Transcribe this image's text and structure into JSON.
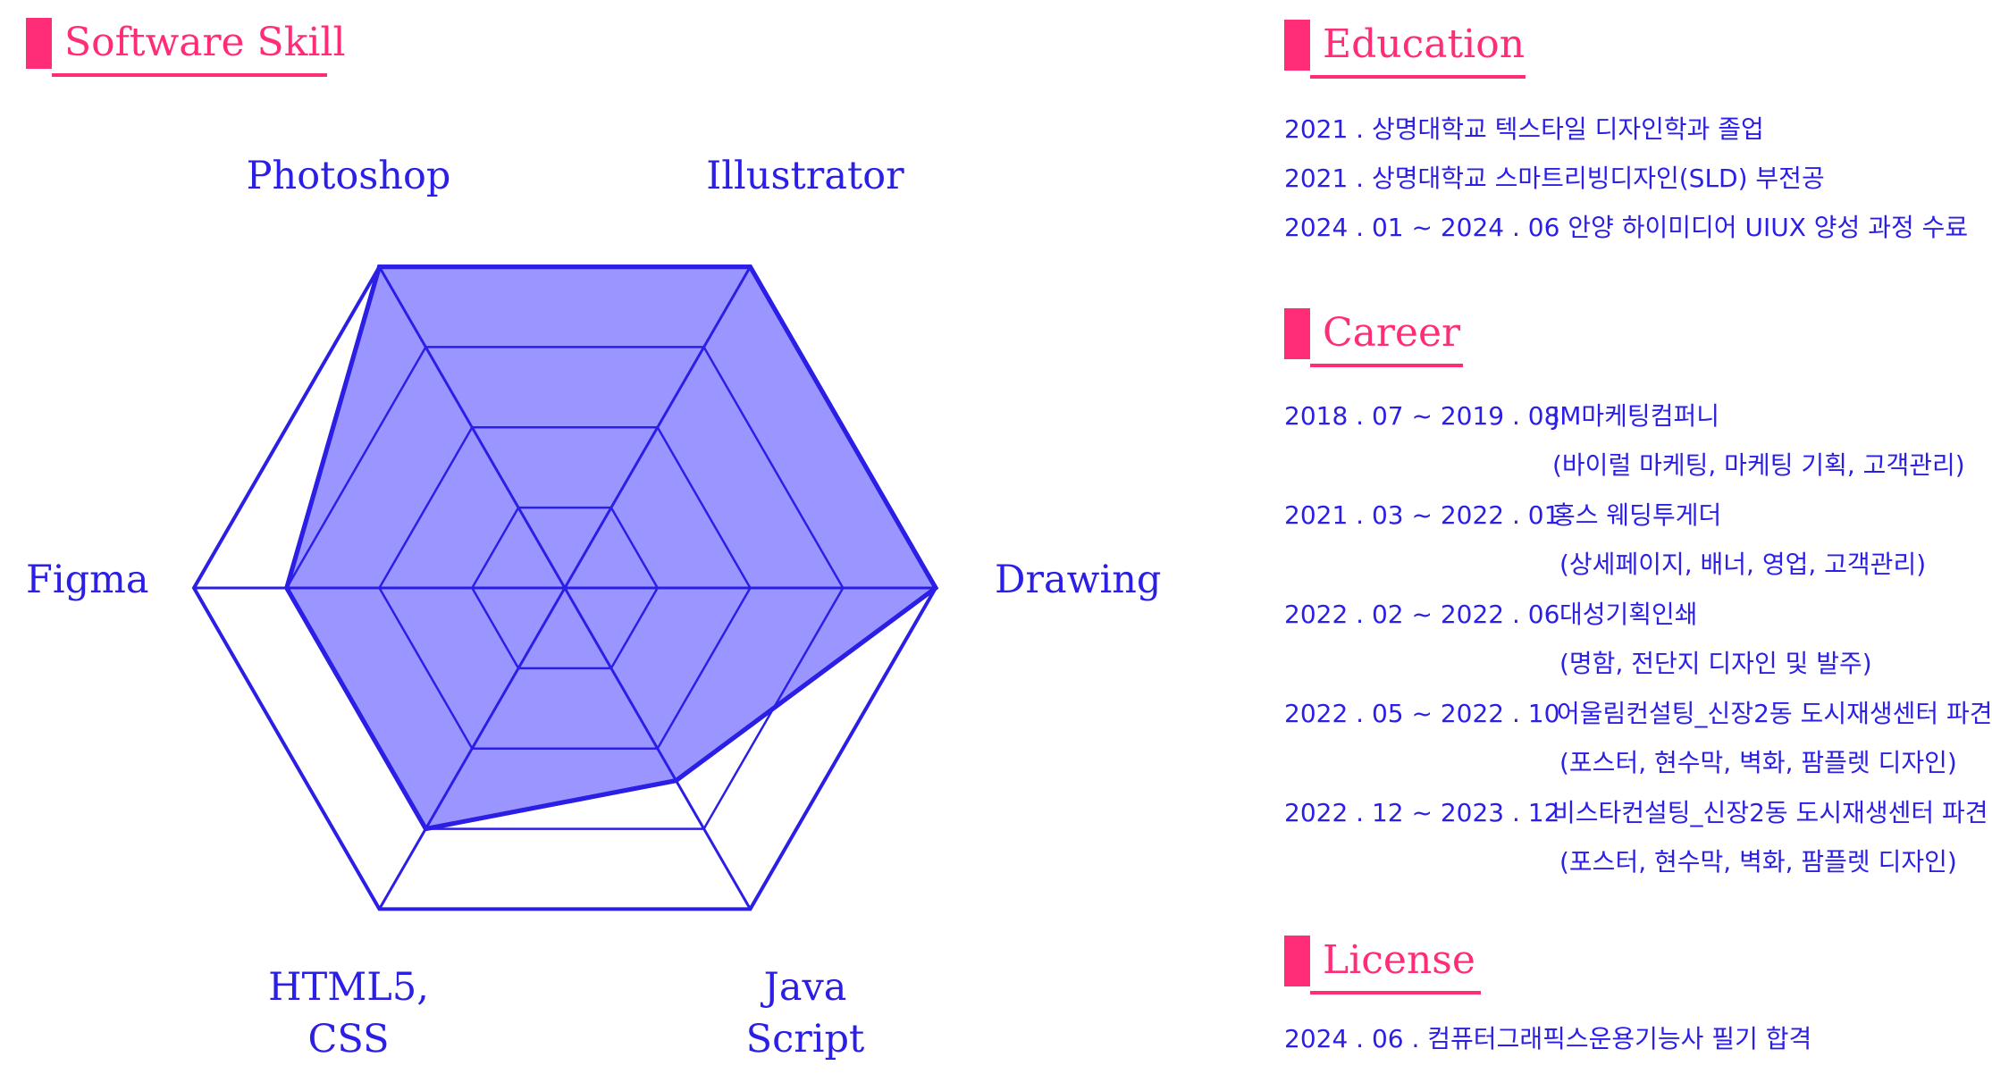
{
  "skills": {
    "title": "Software Skill",
    "accent_color": "#ff2d78",
    "fill_color": "#9b96ff",
    "stroke_color": "#2b1fe5",
    "levels": 4,
    "axes": [
      {
        "label": [
          "Photoshop"
        ],
        "value": 4
      },
      {
        "label": [
          "Illustrator"
        ],
        "value": 4
      },
      {
        "label": [
          "Drawing"
        ],
        "value": 4
      },
      {
        "label": [
          "Java",
          "Script"
        ],
        "value": 2.4
      },
      {
        "label": [
          "HTML5,",
          "CSS"
        ],
        "value": 3
      },
      {
        "label": [
          "Figma"
        ],
        "value": 3
      }
    ]
  },
  "education": {
    "title": "Education",
    "items": [
      "2021 . 상명대학교 텍스타일 디자인학과 졸업",
      "2021 . 상명대학교 스마트리빙디자인(SLD) 부전공",
      "2024 . 01 ~ 2024 . 06 안양 하이미디어 UIUX 양성 과정 수료"
    ]
  },
  "career": {
    "title": "Career",
    "items": [
      {
        "period": "2018 . 07 ~ 2019 . 08",
        "company": "JM마케팅컴퍼니",
        "detail": "(바이럴 마케팅, 마케팅 기획, 고객관리)"
      },
      {
        "period": "2021 . 03 ~ 2022 . 01",
        "company": "홍스 웨딩투게더",
        "detail": "(상세페이지, 배너, 영업, 고객관리)"
      },
      {
        "period": "2022 . 02 ~ 2022 . 06",
        "company": "대성기획인쇄",
        "detail": "(명함, 전단지 디자인 및 발주)"
      },
      {
        "period": "2022 . 05 ~ 2022 . 10",
        "company": "어울림컨설팅_신장2동 도시재생센터 파견",
        "detail": "(포스터, 현수막, 벽화, 팜플렛 디자인)"
      },
      {
        "period": "2022 . 12 ~ 2023 . 12",
        "company": "비스타컨설팅_신장2동 도시재생센터 파견",
        "detail": "(포스터, 현수막, 벽화, 팜플렛 디자인)"
      }
    ]
  },
  "license": {
    "title": "License",
    "items": [
      "2024 . 06 . 컴퓨터그래픽스운용기능사 필기 합격"
    ]
  }
}
